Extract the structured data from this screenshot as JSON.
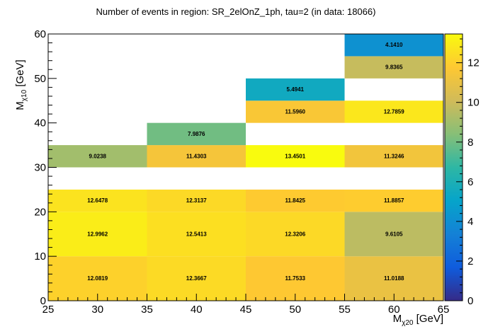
{
  "chart_data": {
    "type": "heatmap",
    "title": "Number of events in region: SR_2elOnZ_1ph, tau=2 (in data: 18066)",
    "xlabel": {
      "main": "M",
      "sub": "χ20",
      "unit": " [GeV]"
    },
    "ylabel": {
      "main": "M",
      "sub": "χ10",
      "unit": " [GeV]"
    },
    "xlim": [
      25,
      65
    ],
    "ylim": [
      0,
      60
    ],
    "zlim": [
      0,
      13.4501
    ],
    "x_ticks": [
      "25",
      "30",
      "35",
      "40",
      "45",
      "50",
      "55",
      "60",
      "65"
    ],
    "y_ticks": [
      "0",
      "10",
      "20",
      "30",
      "40",
      "50",
      "60"
    ],
    "z_ticks": [
      "0",
      "2",
      "4",
      "6",
      "8",
      "10",
      "12"
    ],
    "cells": [
      {
        "x0": 25,
        "x1": 35,
        "y0": 0,
        "y1": 10,
        "value": 12.0819,
        "label": "12.0819"
      },
      {
        "x0": 35,
        "x1": 45,
        "y0": 0,
        "y1": 10,
        "value": 12.3667,
        "label": "12.3667"
      },
      {
        "x0": 45,
        "x1": 55,
        "y0": 0,
        "y1": 10,
        "value": 11.7533,
        "label": "11.7533"
      },
      {
        "x0": 55,
        "x1": 65,
        "y0": 0,
        "y1": 10,
        "value": 11.0188,
        "label": "11.0188"
      },
      {
        "x0": 25,
        "x1": 35,
        "y0": 10,
        "y1": 20,
        "value": 12.9962,
        "label": "12.9962"
      },
      {
        "x0": 35,
        "x1": 45,
        "y0": 10,
        "y1": 20,
        "value": 12.5413,
        "label": "12.5413"
      },
      {
        "x0": 45,
        "x1": 55,
        "y0": 10,
        "y1": 20,
        "value": 12.3206,
        "label": "12.3206"
      },
      {
        "x0": 55,
        "x1": 65,
        "y0": 10,
        "y1": 20,
        "value": 9.6105,
        "label": "9.6105"
      },
      {
        "x0": 25,
        "x1": 35,
        "y0": 20,
        "y1": 25,
        "value": 12.6478,
        "label": "12.6478"
      },
      {
        "x0": 35,
        "x1": 45,
        "y0": 20,
        "y1": 25,
        "value": 12.3137,
        "label": "12.3137"
      },
      {
        "x0": 45,
        "x1": 55,
        "y0": 20,
        "y1": 25,
        "value": 11.8425,
        "label": "11.8425"
      },
      {
        "x0": 55,
        "x1": 65,
        "y0": 20,
        "y1": 25,
        "value": 11.8857,
        "label": "11.8857"
      },
      {
        "x0": 25,
        "x1": 35,
        "y0": 30,
        "y1": 35,
        "value": 9.0238,
        "label": "9.0238"
      },
      {
        "x0": 35,
        "x1": 45,
        "y0": 30,
        "y1": 35,
        "value": 11.4303,
        "label": "11.4303"
      },
      {
        "x0": 45,
        "x1": 55,
        "y0": 30,
        "y1": 35,
        "value": 13.4501,
        "label": "13.4501"
      },
      {
        "x0": 55,
        "x1": 65,
        "y0": 30,
        "y1": 35,
        "value": 11.3246,
        "label": "11.3246"
      },
      {
        "x0": 35,
        "x1": 45,
        "y0": 35,
        "y1": 40,
        "value": 7.9876,
        "label": "7.9876"
      },
      {
        "x0": 45,
        "x1": 55,
        "y0": 40,
        "y1": 45,
        "value": 11.596,
        "label": "11.5960"
      },
      {
        "x0": 55,
        "x1": 65,
        "y0": 40,
        "y1": 45,
        "value": 12.7859,
        "label": "12.7859"
      },
      {
        "x0": 45,
        "x1": 55,
        "y0": 45,
        "y1": 50,
        "value": 5.4941,
        "label": "5.4941"
      },
      {
        "x0": 55,
        "x1": 65,
        "y0": 50,
        "y1": 55,
        "value": 9.8365,
        "label": "9.8365"
      },
      {
        "x0": 55,
        "x1": 65,
        "y0": 55,
        "y1": 60,
        "value": 4.141,
        "label": "4.1410"
      }
    ],
    "palette": [
      "#352a87",
      "#0f5cdd",
      "#1481d6",
      "#06a4ca",
      "#2eb7a4",
      "#87bf77",
      "#d1bb59",
      "#fec832",
      "#f9fb0e"
    ]
  }
}
